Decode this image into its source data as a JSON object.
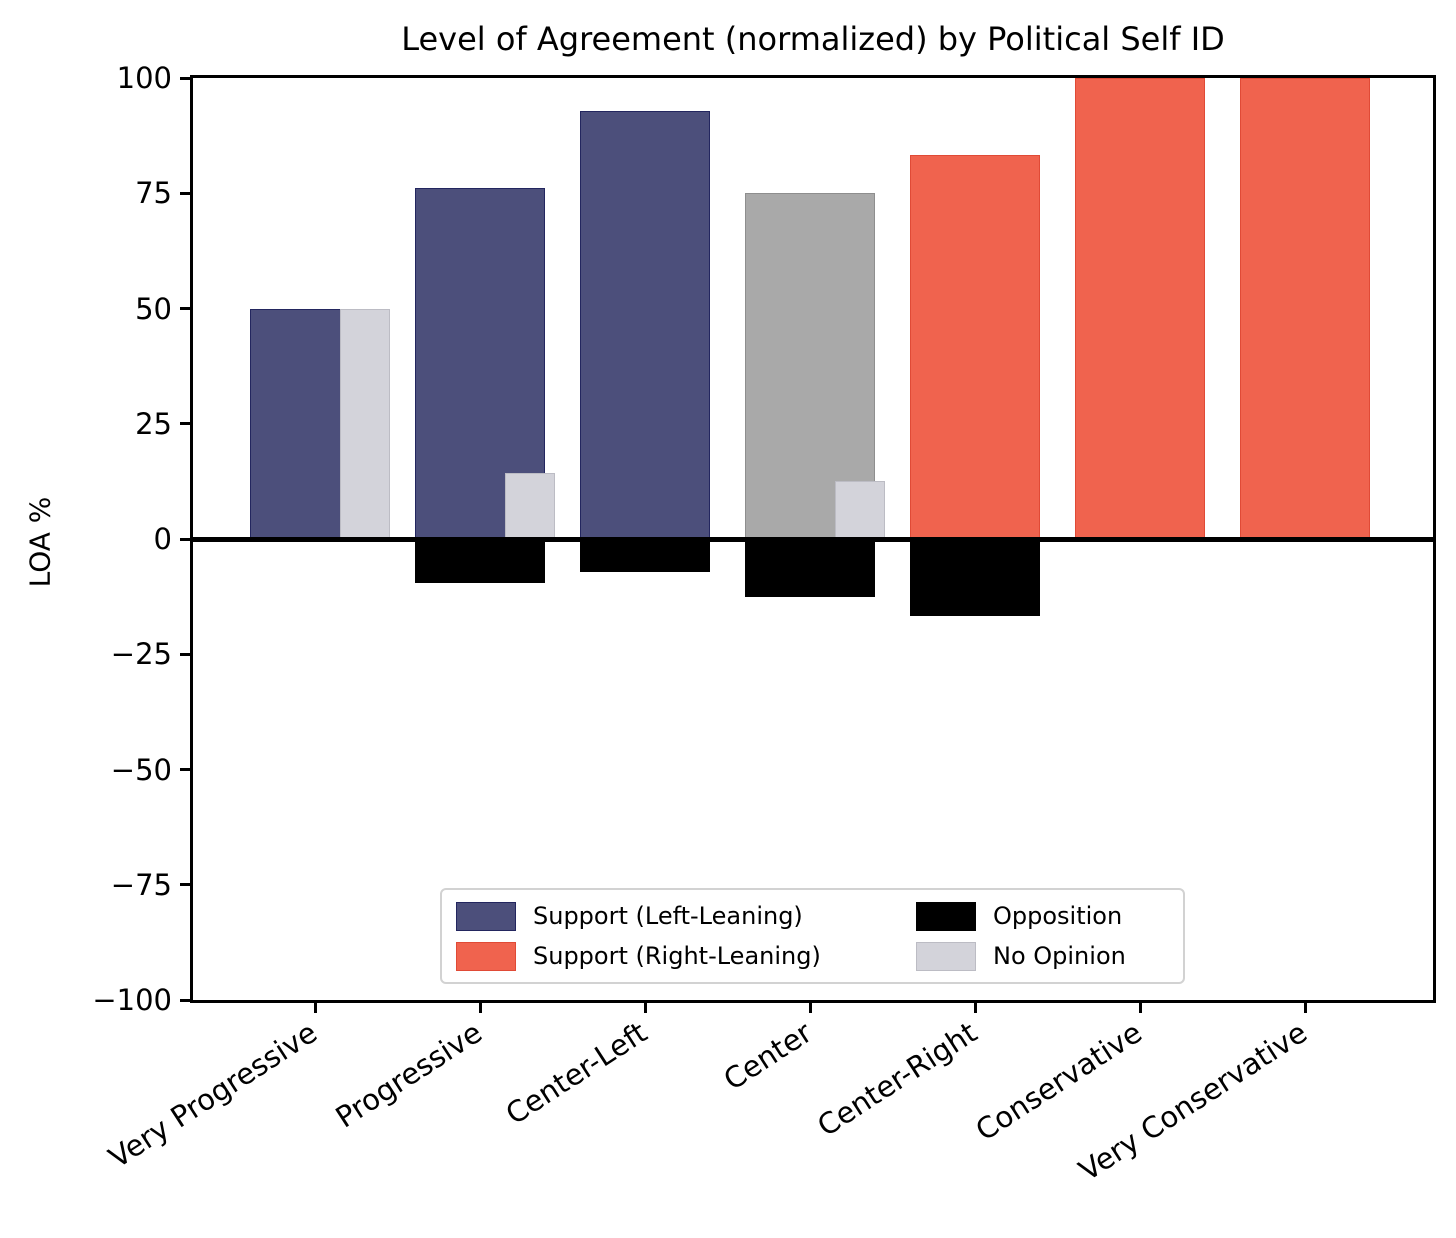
{
  "chart_data": {
    "type": "bar",
    "title": "Level of Agreement (normalized) by Political Self ID",
    "ylabel": "LOA %",
    "ylim": [
      -100,
      100
    ],
    "ytick_values": [
      100,
      75,
      50,
      25,
      0,
      -25,
      -50,
      -75,
      -100
    ],
    "ytick_labels": [
      "100",
      "75",
      "50",
      "25",
      "0",
      "−25",
      "−50",
      "−75",
      "−100"
    ],
    "categories": [
      "Very Progressive",
      "Progressive",
      "Center-Left",
      "Center",
      "Center-Right",
      "Conservative",
      "Very Conservative"
    ],
    "series": [
      {
        "name": "Support",
        "values": [
          50.0,
          76.2,
          92.9,
          75.0,
          83.3,
          100.0,
          100.0
        ],
        "bar_colors": [
          "left",
          "left",
          "left",
          "neutral",
          "right",
          "right",
          "right"
        ]
      },
      {
        "name": "Opposition",
        "values": [
          0.0,
          -9.5,
          -7.1,
          -12.5,
          -16.7,
          0.0,
          0.0
        ]
      },
      {
        "name": "No Opinion",
        "values": [
          50.0,
          14.3,
          0.0,
          12.5,
          0.0,
          0.0,
          0.0
        ]
      }
    ],
    "colors": {
      "left": "#4C4F7B",
      "right": "#F0634E",
      "neutral": "#A9A9A9",
      "opposition": "#000000",
      "no_opinion": "#D3D3DA",
      "left_edge": "#23265F",
      "right_edge": "#E04A36",
      "neutral_edge": "#8E8E8E",
      "no_opinion_edge": "#BCBCC4",
      "opposition_edge": "#000000"
    },
    "legend": {
      "position": "lower center",
      "items": [
        {
          "label": "Support (Left-Leaning)",
          "color_key": "left"
        },
        {
          "label": "Support (Right-Leaning)",
          "color_key": "right"
        },
        {
          "label": "Opposition",
          "color_key": "opposition"
        },
        {
          "label": "No Opinion",
          "color_key": "no_opinion"
        }
      ]
    },
    "grid": false
  }
}
